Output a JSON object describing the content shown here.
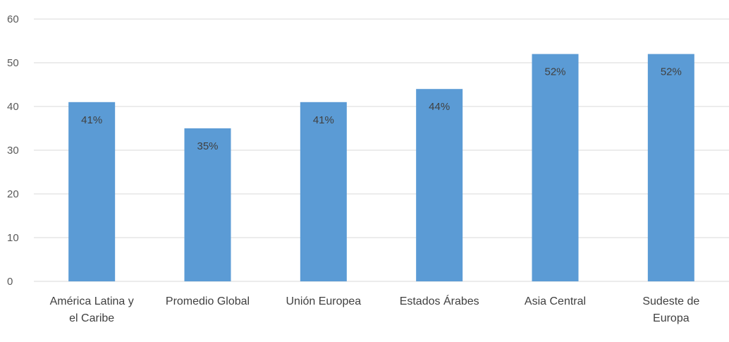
{
  "chart_data": {
    "type": "bar",
    "title": "",
    "xlabel": "",
    "ylabel": "",
    "ylim": [
      0,
      60
    ],
    "yticks": [
      0,
      10,
      20,
      30,
      40,
      50,
      60
    ],
    "grid": true,
    "legend": "none",
    "bar_color": "#5b9bd5",
    "categories": [
      [
        "América Latina y",
        "el Caribe"
      ],
      [
        "Promedio Global"
      ],
      [
        "Unión Europea"
      ],
      [
        "Estados Árabes"
      ],
      [
        "Asia Central"
      ],
      [
        "Sudeste de",
        "Europa"
      ]
    ],
    "values": [
      41,
      35,
      41,
      44,
      52,
      52
    ],
    "data_labels": [
      "41%",
      "35%",
      "41%",
      "44%",
      "52%",
      "52%"
    ]
  }
}
